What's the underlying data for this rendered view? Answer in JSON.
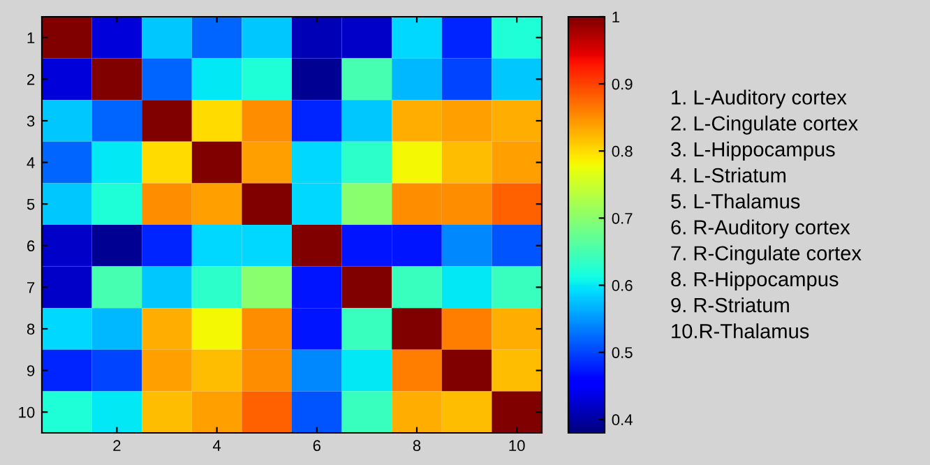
{
  "chart_data": {
    "type": "heatmap",
    "categories": [
      null,
      "2",
      null,
      "4",
      null,
      "6",
      null,
      "8",
      null,
      "10"
    ],
    "y_categories": [
      "1",
      "2",
      "3",
      "4",
      "5",
      "6",
      "7",
      "8",
      "9",
      "10"
    ],
    "cells": [
      [
        1,
        0.43,
        0.58,
        0.52,
        0.58,
        0.41,
        0.42,
        0.59,
        0.48,
        0.62
      ],
      [
        0.43,
        1,
        0.52,
        0.6,
        0.62,
        0.39,
        0.65,
        0.57,
        0.5,
        0.58
      ],
      [
        0.58,
        0.52,
        1,
        0.8,
        0.85,
        0.48,
        0.58,
        0.83,
        0.84,
        0.83
      ],
      [
        0.52,
        0.6,
        0.8,
        1,
        0.84,
        0.59,
        0.63,
        0.78,
        0.82,
        0.84
      ],
      [
        0.58,
        0.62,
        0.85,
        0.84,
        1,
        0.59,
        0.7,
        0.85,
        0.85,
        0.88
      ],
      [
        0.42,
        0.39,
        0.48,
        0.59,
        0.59,
        1,
        0.47,
        0.47,
        0.54,
        0.51
      ],
      [
        0.42,
        0.65,
        0.58,
        0.63,
        0.7,
        0.47,
        1,
        0.64,
        0.6,
        0.64
      ],
      [
        0.59,
        0.57,
        0.83,
        0.78,
        0.85,
        0.47,
        0.64,
        1,
        0.86,
        0.83
      ],
      [
        0.48,
        0.5,
        0.84,
        0.82,
        0.85,
        0.54,
        0.6,
        0.86,
        1,
        0.82
      ],
      [
        0.62,
        0.6,
        0.82,
        0.84,
        0.88,
        0.51,
        0.64,
        0.83,
        0.82,
        1
      ]
    ],
    "clim": [
      0.38,
      1
    ],
    "cticks": [
      0.4,
      0.5,
      0.6,
      0.7,
      0.8,
      0.9,
      1
    ],
    "annotations": [
      "1. L-Auditory cortex",
      "2. L-Cingulate cortex",
      "3. L-Hippocampus",
      "4. L-Striatum",
      "5. L-Thalamus",
      "6. R-Auditory cortex",
      "7. R-Cingulate cortex",
      "8. R-Hippocampus",
      "9. R-Striatum",
      "10.R-Thalamus"
    ]
  }
}
